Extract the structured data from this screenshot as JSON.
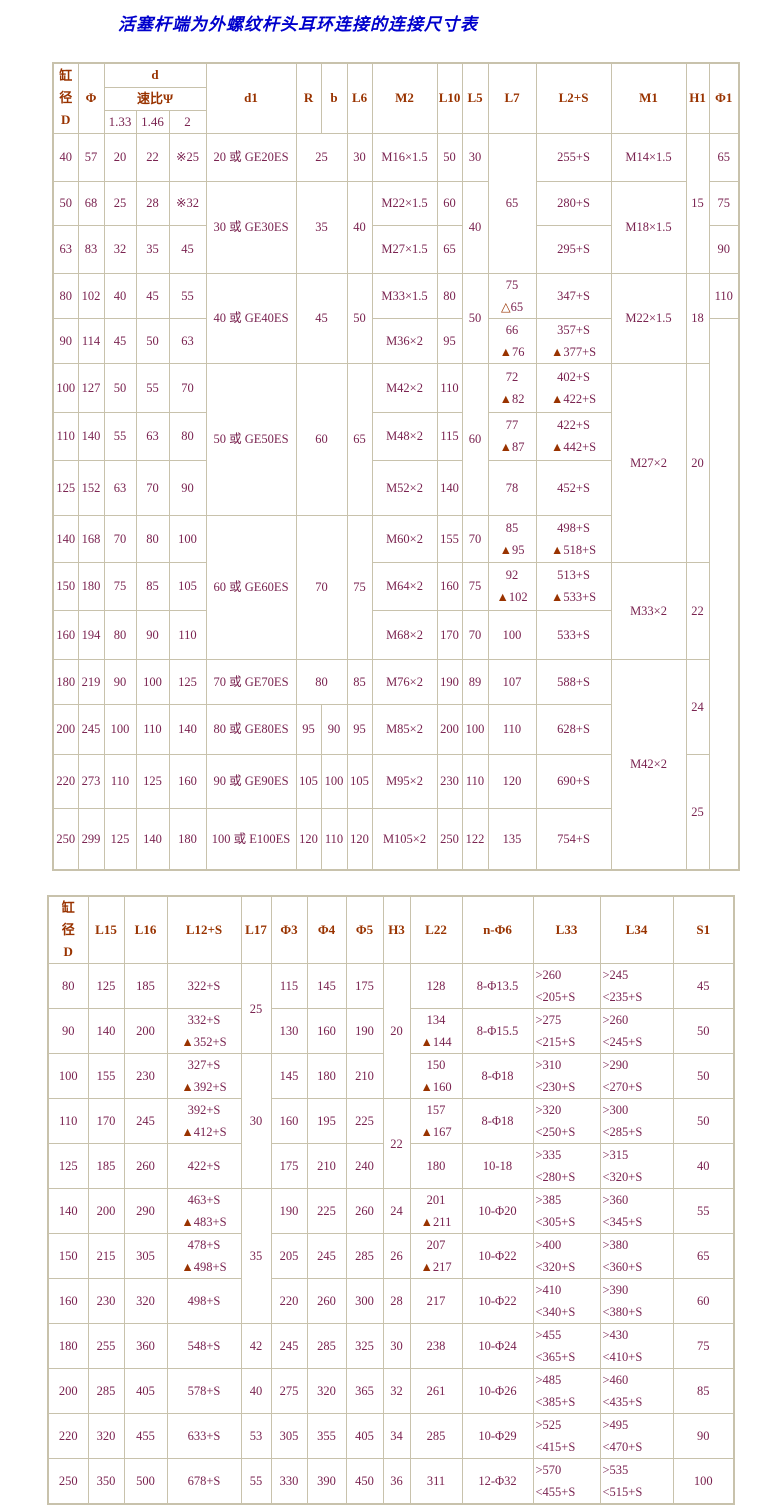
{
  "title": "活塞杆端为外螺纹杆头耳环连接的连接尺寸表",
  "colors": {
    "title": "#0000cc",
    "header": "#993300",
    "value": "#7a2350",
    "border": "#c8c2ac",
    "triangle_mark": "#993300"
  },
  "table1": {
    "header": [
      [
        {
          "t": "缸\n径\nD",
          "rs": 3
        },
        {
          "t": "Φ",
          "rs": 3
        },
        {
          "t": "d",
          "cs": 3
        },
        {
          "t": "d1",
          "rs": 3
        },
        {
          "t": "R",
          "rs": 3
        },
        {
          "t": "b",
          "rs": 3
        },
        {
          "t": "L6",
          "rs": 3
        },
        {
          "t": "M2",
          "rs": 3
        },
        {
          "t": "L10",
          "rs": 3
        },
        {
          "t": "L5",
          "rs": 3
        },
        {
          "t": "L7",
          "rs": 3
        },
        {
          "t": "L2+S",
          "rs": 3
        },
        {
          "t": "M1",
          "rs": 3
        },
        {
          "t": "H1",
          "rs": 3
        },
        {
          "t": "Φ1",
          "rs": 3
        }
      ],
      [
        {
          "t": "速比Ψ",
          "cs": 3
        }
      ],
      [
        {
          "t": "1.33",
          "sm": 1
        },
        {
          "t": "1.46",
          "sm": 1
        },
        {
          "t": "2",
          "sm": 1
        }
      ]
    ],
    "rows": [
      [
        "40",
        "57",
        "20",
        "22",
        "※25",
        "20 或 GE20ES",
        {
          "t": "25",
          "cs": 2
        },
        "30",
        "M16×1.5",
        "50",
        "30",
        {
          "t": "65",
          "rs": 3
        },
        "255+S",
        "M14×1.5",
        {
          "t": "15",
          "rs": 3
        },
        "65"
      ],
      [
        "50",
        "68",
        "25",
        "28",
        "※32",
        {
          "t": "30 或 GE30ES",
          "rs": 2
        },
        {
          "t": "35",
          "cs": 2,
          "rs": 2
        },
        {
          "t": "40",
          "rs": 2
        },
        "M22×1.5",
        "60",
        {
          "t": "40",
          "rs": 2
        },
        "280+S",
        {
          "t": "M18×1.5",
          "rs": 2
        },
        "75"
      ],
      [
        "63",
        "83",
        "32",
        "35",
        "45",
        "M27×1.5",
        "65",
        "295+S",
        "90"
      ],
      [
        "80",
        "102",
        "40",
        "45",
        "55",
        {
          "t": "40 或 GE40ES",
          "rs": 2
        },
        {
          "t": "45",
          "cs": 2,
          "rs": 2
        },
        {
          "t": "50",
          "rs": 2
        },
        "M33×1.5",
        "80",
        {
          "t": "50",
          "rs": 2
        },
        "75\n△65",
        "347+S",
        {
          "t": "M22×1.5",
          "rs": 2
        },
        {
          "t": "18",
          "rs": 2
        },
        "110"
      ],
      [
        "90",
        "114",
        "45",
        "50",
        "63",
        "M36×2",
        "95",
        "66\n▲76",
        "357+S\n▲377+S",
        {
          "t": "",
          "rs": 11
        }
      ],
      [
        "100",
        "127",
        "50",
        "55",
        "70",
        {
          "t": "50 或 GE50ES",
          "rs": 3
        },
        {
          "t": "60",
          "cs": 2,
          "rs": 3
        },
        {
          "t": "65",
          "rs": 3
        },
        "M42×2",
        "110",
        {
          "t": "60",
          "rs": 3
        },
        "72\n▲82",
        "402+S\n▲422+S",
        {
          "t": "M27×2",
          "rs": 4
        },
        {
          "t": "20",
          "rs": 4
        }
      ],
      [
        "110",
        "140",
        "55",
        "63",
        "80",
        "M48×2",
        "115",
        "77\n▲87",
        "422+S\n▲442+S"
      ],
      [
        "125",
        "152",
        "63",
        "70",
        "90",
        "M52×2",
        "140",
        "78",
        "452+S"
      ],
      [
        "140",
        "168",
        "70",
        "80",
        "100",
        {
          "t": "60 或 GE60ES",
          "rs": 3
        },
        {
          "t": "70",
          "cs": 2,
          "rs": 3
        },
        {
          "t": "75",
          "rs": 3
        },
        "M60×2",
        "155",
        "70",
        "85\n▲95",
        "498+S\n▲518+S"
      ],
      [
        "150",
        "180",
        "75",
        "85",
        "105",
        "M64×2",
        "160",
        "75",
        "92\n▲102",
        "513+S\n▲533+S",
        {
          "t": "M33×2",
          "rs": 2
        },
        {
          "t": "22",
          "rs": 2
        }
      ],
      [
        "160",
        "194",
        "80",
        "90",
        "110",
        "M68×2",
        "170",
        "70",
        "100",
        "533+S"
      ],
      [
        "180",
        "219",
        "90",
        "100",
        "125",
        "70 或 GE70ES",
        {
          "t": "80",
          "cs": 2
        },
        "85",
        "M76×2",
        "190",
        "89",
        "107",
        "588+S",
        {
          "t": "M42×2",
          "rs": 4
        },
        {
          "t": "24",
          "rs": 2
        }
      ],
      [
        "200",
        "245",
        "100",
        "110",
        "140",
        "80 或 GE80ES",
        "95",
        "90",
        "95",
        "M85×2",
        "200",
        "100",
        "110",
        "628+S"
      ],
      [
        "220",
        "273",
        "110",
        "125",
        "160",
        "90 或 GE90ES",
        "105",
        "100",
        "105",
        "M95×2",
        "230",
        "110",
        "120",
        "690+S",
        {
          "t": "25",
          "rs": 2
        }
      ],
      [
        "250",
        "299",
        "125",
        "140",
        "180",
        "100 或 E100ES",
        "120",
        "110",
        "120",
        "M105×2",
        "250",
        "122",
        "135",
        "754+S"
      ]
    ]
  },
  "table2": {
    "header": [
      [
        {
          "t": "缸\n径\nD"
        },
        {
          "t": "L15"
        },
        {
          "t": "L16"
        },
        {
          "t": "L12+S"
        },
        {
          "t": "L17"
        },
        {
          "t": "Φ3"
        },
        {
          "t": "Φ4"
        },
        {
          "t": "Φ5"
        },
        {
          "t": "H3"
        },
        {
          "t": "L22"
        },
        {
          "t": "n-Φ6"
        },
        {
          "t": "L33"
        },
        {
          "t": "L34"
        },
        {
          "t": "S1"
        }
      ]
    ],
    "rows": [
      [
        "80",
        "125",
        "185",
        "322+S",
        {
          "t": "25",
          "rs": 2
        },
        "115",
        "145",
        "175",
        {
          "t": "20",
          "rs": 3
        },
        "128",
        "8-Φ13.5",
        ">260\n<205+S",
        ">245\n<235+S",
        "45"
      ],
      [
        "90",
        "140",
        "200",
        "332+S\n▲352+S",
        "130",
        "160",
        "190",
        "134\n▲144",
        "8-Φ15.5",
        ">275\n<215+S",
        ">260\n<245+S",
        "50"
      ],
      [
        "100",
        "155",
        "230",
        "327+S\n▲392+S",
        {
          "t": "30",
          "rs": 3
        },
        "145",
        "180",
        "210",
        "150\n▲160",
        "8-Φ18",
        ">310\n<230+S",
        ">290\n<270+S",
        "50"
      ],
      [
        "110",
        "170",
        "245",
        "392+S\n▲412+S",
        "160",
        "195",
        "225",
        {
          "t": "22",
          "rs": 2
        },
        "157\n▲167",
        "8-Φ18",
        ">320\n<250+S",
        ">300\n<285+S",
        "50"
      ],
      [
        "125",
        "185",
        "260",
        "422+S",
        "175",
        "210",
        "240",
        "180",
        "10-18",
        ">335\n<280+S",
        ">315\n<320+S",
        "40"
      ],
      [
        "140",
        "200",
        "290",
        "463+S\n▲483+S",
        {
          "t": "35",
          "rs": 3
        },
        "190",
        "225",
        "260",
        "24",
        "201\n▲211",
        "10-Φ20",
        ">385\n<305+S",
        ">360\n<345+S",
        "55"
      ],
      [
        "150",
        "215",
        "305",
        "478+S\n▲498+S",
        "205",
        "245",
        "285",
        "26",
        "207\n▲217",
        "10-Φ22",
        ">400\n<320+S",
        ">380\n<360+S",
        "65"
      ],
      [
        "160",
        "230",
        "320",
        "498+S",
        "220",
        "260",
        "300",
        "28",
        "217",
        "10-Φ22",
        ">410\n<340+S",
        ">390\n<380+S",
        "60"
      ],
      [
        "180",
        "255",
        "360",
        "548+S",
        "42",
        "245",
        "285",
        "325",
        "30",
        "238",
        "10-Φ24",
        ">455\n<365+S",
        ">430\n<410+S",
        "75"
      ],
      [
        "200",
        "285",
        "405",
        "578+S",
        "40",
        "275",
        "320",
        "365",
        "32",
        "261",
        "10-Φ26",
        ">485\n<385+S",
        ">460\n<435+S",
        "85"
      ],
      [
        "220",
        "320",
        "455",
        "633+S",
        "53",
        "305",
        "355",
        "405",
        "34",
        "285",
        "10-Φ29",
        ">525\n<415+S",
        ">495\n<470+S",
        "90"
      ],
      [
        "250",
        "350",
        "500",
        "678+S",
        "55",
        "330",
        "390",
        "450",
        "36",
        "311",
        "12-Φ32",
        ">570\n<455+S",
        ">535\n<515+S",
        "100"
      ]
    ]
  }
}
